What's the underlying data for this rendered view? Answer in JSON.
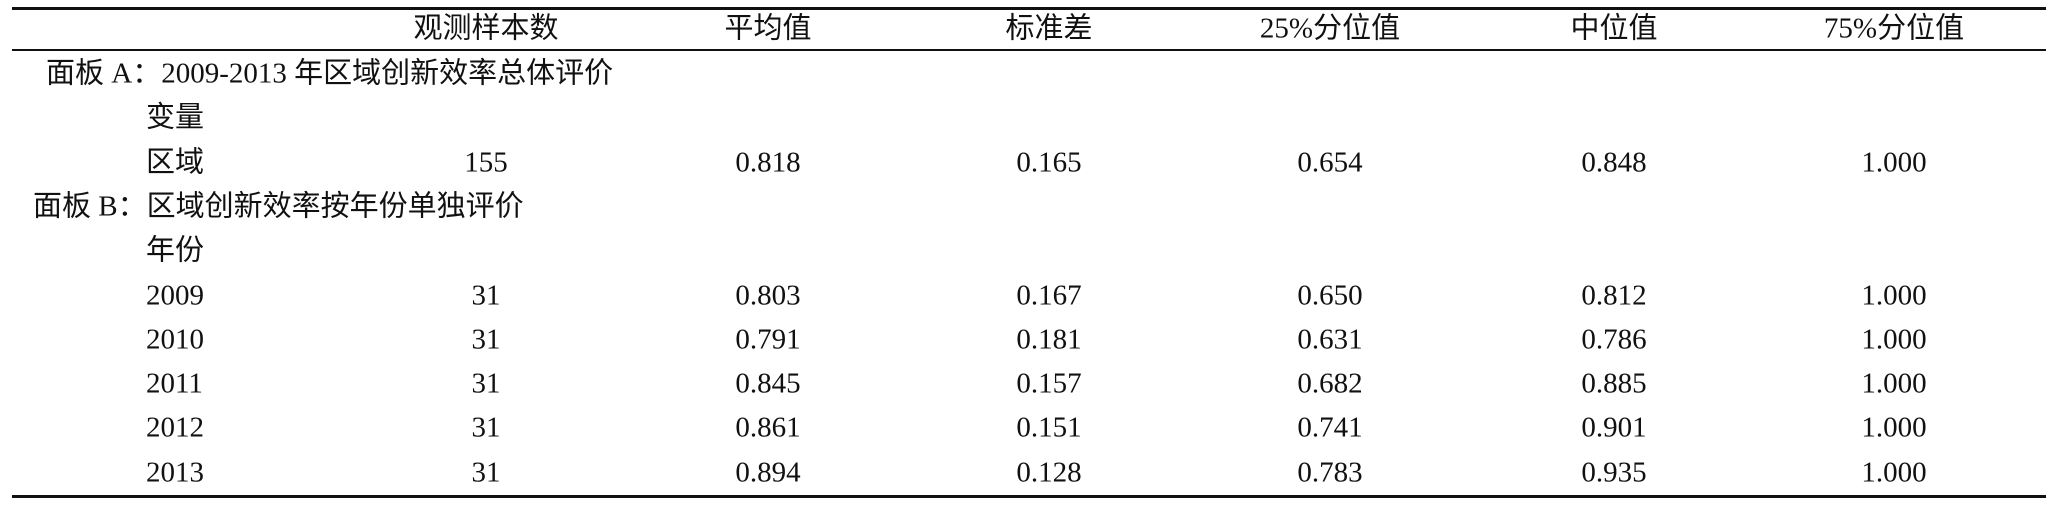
{
  "table": {
    "header": [
      "观测样本数",
      "平均值",
      "标准差",
      "25%分位值",
      "中位值",
      "75%分位值"
    ],
    "sections": [
      {
        "title": "面板 A：2009-2013 年区域创新效率总体评价",
        "label": "变量",
        "rows": [
          {
            "name": "区域",
            "cells": [
              "155",
              "0.818",
              "0.165",
              "0.654",
              "0.848",
              "1.000"
            ]
          }
        ]
      },
      {
        "title": "面板 B：区域创新效率按年份单独评价",
        "label": "年份",
        "rows": [
          {
            "name": "2009",
            "cells": [
              "31",
              "0.803",
              "0.167",
              "0.650",
              "0.812",
              "1.000"
            ]
          },
          {
            "name": "2010",
            "cells": [
              "31",
              "0.791",
              "0.181",
              "0.631",
              "0.786",
              "1.000"
            ]
          },
          {
            "name": "2011",
            "cells": [
              "31",
              "0.845",
              "0.157",
              "0.682",
              "0.885",
              "1.000"
            ]
          },
          {
            "name": "2012",
            "cells": [
              "31",
              "0.861",
              "0.151",
              "0.741",
              "0.901",
              "1.000"
            ]
          },
          {
            "name": "2013",
            "cells": [
              "31",
              "0.894",
              "0.128",
              "0.783",
              "0.935",
              "1.000"
            ]
          }
        ]
      }
    ]
  }
}
